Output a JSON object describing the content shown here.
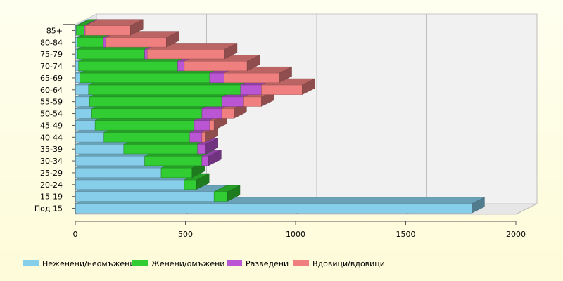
{
  "chart_data": {
    "type": "bar",
    "orientation": "horizontal",
    "stacked": true,
    "style": "3d",
    "grid": true,
    "legend_position": "bottom",
    "title": "",
    "xlabel": "",
    "ylabel": "",
    "xlim": [
      0,
      2000
    ],
    "x_ticks": [
      "0",
      "500",
      "1000",
      "1500",
      "2000"
    ],
    "categories": [
      "Под 15",
      "15-19",
      "20-24",
      "25-29",
      "30-34",
      "35-39",
      "40-44",
      "45-49",
      "50-54",
      "55-59",
      "60-64",
      "65-69",
      "70-74",
      "75-79",
      "80-84",
      "85+"
    ],
    "series": [
      {
        "name": "Неженени/неомъжени",
        "color": "#87ceeb",
        "values": [
          1800,
          630,
          495,
          390,
          315,
          220,
          130,
          90,
          75,
          65,
          60,
          20,
          15,
          10,
          8,
          5
        ]
      },
      {
        "name": "Женени/омъжени",
        "color": "#32cd32",
        "values": [
          0,
          60,
          55,
          140,
          260,
          335,
          390,
          450,
          500,
          600,
          690,
          590,
          450,
          305,
          120,
          35
        ]
      },
      {
        "name": "Разведени",
        "color": "#ba55d3",
        "values": [
          0,
          0,
          0,
          0,
          30,
          35,
          55,
          70,
          90,
          100,
          95,
          65,
          30,
          12,
          10,
          5
        ]
      },
      {
        "name": "Вдовици/вдовици",
        "color": "#f08080",
        "values": [
          0,
          0,
          0,
          0,
          0,
          0,
          15,
          20,
          55,
          80,
          185,
          250,
          285,
          350,
          275,
          205
        ]
      }
    ]
  }
}
